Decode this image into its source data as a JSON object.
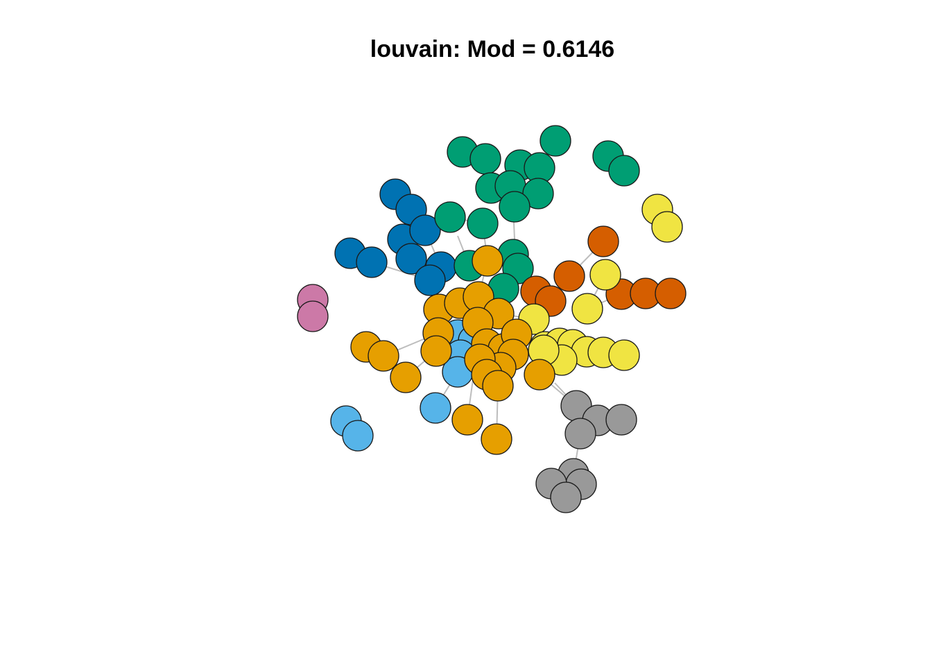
{
  "title": "louvain: Mod = 0.6146",
  "communities": [
    {
      "id": "green",
      "color": "#009E73"
    },
    {
      "id": "blue",
      "color": "#0072B2"
    },
    {
      "id": "orange",
      "color": "#E69F00"
    },
    {
      "id": "skyblue",
      "color": "#56B4E9"
    },
    {
      "id": "vermillion",
      "color": "#D55E00"
    },
    {
      "id": "yellow",
      "color": "#F0E442"
    },
    {
      "id": "gray",
      "color": "#999999"
    },
    {
      "id": "pink",
      "color": "#CC79A7"
    }
  ],
  "edge_color": "#bdbdbd"
}
